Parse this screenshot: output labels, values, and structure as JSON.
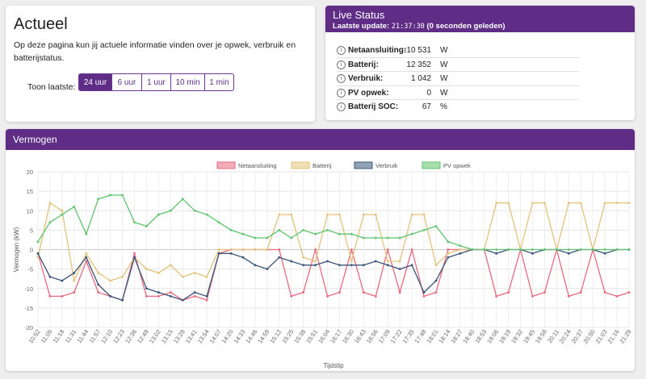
{
  "actueel": {
    "title": "Actueel",
    "intro": "Op deze pagina kun jij actuele informatie vinden over je opwek, verbruik en batterijstatus.",
    "toon_label": "Toon laatste:",
    "buttons": [
      "24 uur",
      "6 uur",
      "1 uur",
      "10 min",
      "1 min"
    ],
    "active_button": "24 uur"
  },
  "live": {
    "title": "Live Status",
    "update_label": "Laatste update:",
    "update_time": "21:37:30",
    "update_ago": "(0 seconden geleden)",
    "rows": [
      {
        "label": "Netaansluiting:",
        "value": "-10 531",
        "unit": "W"
      },
      {
        "label": "Batterij:",
        "value": "12 352",
        "unit": "W"
      },
      {
        "label": "Verbruik:",
        "value": "1 042",
        "unit": "W"
      },
      {
        "label": "PV opwek:",
        "value": "0",
        "unit": "W"
      },
      {
        "label": "Batterij SOC:",
        "value": "67",
        "unit": "%"
      }
    ]
  },
  "vermogen": {
    "title": "Vermogen",
    "chart_data": {
      "type": "line",
      "ylabel": "Vermogen (kW)",
      "xlabel": "Tijdstip",
      "ylim": [
        -20,
        20
      ],
      "yticks": [
        -20,
        -15,
        -10,
        -5,
        0,
        5,
        10,
        15,
        20
      ],
      "grid": true,
      "legend_position": "top",
      "x": [
        "10:52",
        "11:05",
        "11:18",
        "11:31",
        "11:44",
        "11:57",
        "12:10",
        "12:23",
        "12:36",
        "12:49",
        "13:02",
        "13:15",
        "13:28",
        "13:41",
        "13:54",
        "14:07",
        "14:20",
        "14:33",
        "14:46",
        "14:59",
        "15:12",
        "15:25",
        "15:38",
        "15:51",
        "16:04",
        "16:17",
        "16:30",
        "16:43",
        "16:56",
        "17:09",
        "17:22",
        "17:35",
        "17:48",
        "18:01",
        "18:14",
        "18:27",
        "18:40",
        "18:53",
        "19:06",
        "19:19",
        "19:32",
        "19:45",
        "19:58",
        "20:11",
        "20:24",
        "20:37",
        "20:50",
        "21:03",
        "21:16",
        "21:29"
      ],
      "series": [
        {
          "name": "Netaansluiting",
          "color": "#e8697f",
          "values": [
            -1,
            -12,
            -12,
            -11,
            -3,
            -11,
            -12,
            -13,
            -1,
            -12,
            -12,
            -11,
            -13,
            -12,
            -13,
            -1,
            0,
            0,
            0,
            0,
            0,
            -12,
            -11,
            0,
            -12,
            -11,
            0,
            -11,
            -12,
            0,
            -11,
            0,
            -12,
            -11,
            0,
            0,
            0,
            0,
            -12,
            -11,
            0,
            -12,
            -11,
            0,
            -12,
            -11,
            0,
            -11,
            -12,
            -11
          ]
        },
        {
          "name": "Batterij",
          "color": "#e3c37a",
          "values": [
            -2,
            12,
            10,
            -8,
            -1,
            -6,
            -8,
            -7,
            -2,
            -5,
            -6,
            -4,
            -7,
            -6,
            -7,
            0,
            0,
            0,
            0,
            0,
            9,
            9,
            -2,
            -3,
            9,
            9,
            -3,
            9,
            9,
            -3,
            -3,
            9,
            9,
            -4,
            -1,
            0,
            0,
            0,
            12,
            12,
            0,
            12,
            12,
            0,
            12,
            12,
            0,
            12,
            12,
            12
          ]
        },
        {
          "name": "Verbruik",
          "color": "#3a5579",
          "values": [
            -1,
            -7,
            -8,
            -6,
            -2,
            -9,
            -12,
            -13,
            -2,
            -10,
            -11,
            -12,
            -13,
            -11,
            -12,
            -1,
            -1,
            -2,
            -4,
            -5,
            -2,
            -3,
            -4,
            -4,
            -3,
            -4,
            -4,
            -4,
            -3,
            -4,
            -5,
            -4,
            -11,
            -8,
            -2,
            -1,
            0,
            0,
            -1,
            0,
            0,
            -1,
            0,
            0,
            -1,
            0,
            0,
            -1,
            0,
            0
          ]
        },
        {
          "name": "PV opwek",
          "color": "#5ec46e",
          "values": [
            2,
            7,
            9,
            11,
            4,
            13,
            14,
            14,
            7,
            6,
            9,
            10,
            13,
            10,
            9,
            7,
            5,
            4,
            3,
            3,
            5,
            3,
            5,
            4,
            5,
            4,
            4,
            3,
            3,
            3,
            3,
            4,
            5,
            6,
            2,
            1,
            0,
            0,
            0,
            0,
            0,
            0,
            0,
            0,
            0,
            0,
            0,
            0,
            0,
            0
          ]
        }
      ]
    }
  }
}
